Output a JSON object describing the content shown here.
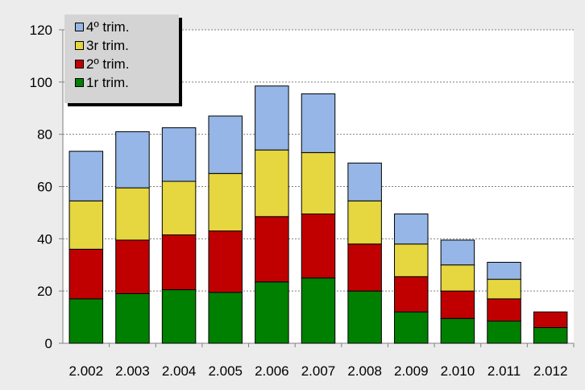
{
  "chart_data": {
    "type": "bar",
    "stacked": true,
    "categories": [
      "2.002",
      "2.003",
      "2.004",
      "2.005",
      "2.006",
      "2.007",
      "2.008",
      "2.009",
      "2.010",
      "2.011",
      "2.012"
    ],
    "series": [
      {
        "name": "1r trim.",
        "color": "#008000",
        "values": [
          17,
          19,
          20.5,
          19.5,
          23.5,
          25,
          20,
          12,
          9.5,
          8.5,
          6
        ]
      },
      {
        "name": "2º trim.",
        "color": "#c00000",
        "values": [
          19,
          20.5,
          21,
          23.5,
          25,
          24.5,
          18,
          13.5,
          10.5,
          8.5,
          6
        ]
      },
      {
        "name": "3r trim.",
        "color": "#e6d640",
        "values": [
          18.5,
          20,
          20.5,
          22,
          25.5,
          23.5,
          16.5,
          12.5,
          10,
          7.5,
          0
        ]
      },
      {
        "name": "4º trim.",
        "color": "#95b6e6",
        "values": [
          19,
          21.5,
          20.5,
          22,
          24.5,
          22.5,
          14.5,
          11.5,
          9.5,
          6.5,
          0
        ]
      }
    ],
    "ylim": [
      0,
      120
    ],
    "yticks": [
      "0",
      "20",
      "40",
      "60",
      "80",
      "100",
      "120"
    ],
    "grid": "horizontal-dotted",
    "legend_position": "top-left",
    "legend_order": [
      3,
      2,
      1,
      0
    ]
  }
}
